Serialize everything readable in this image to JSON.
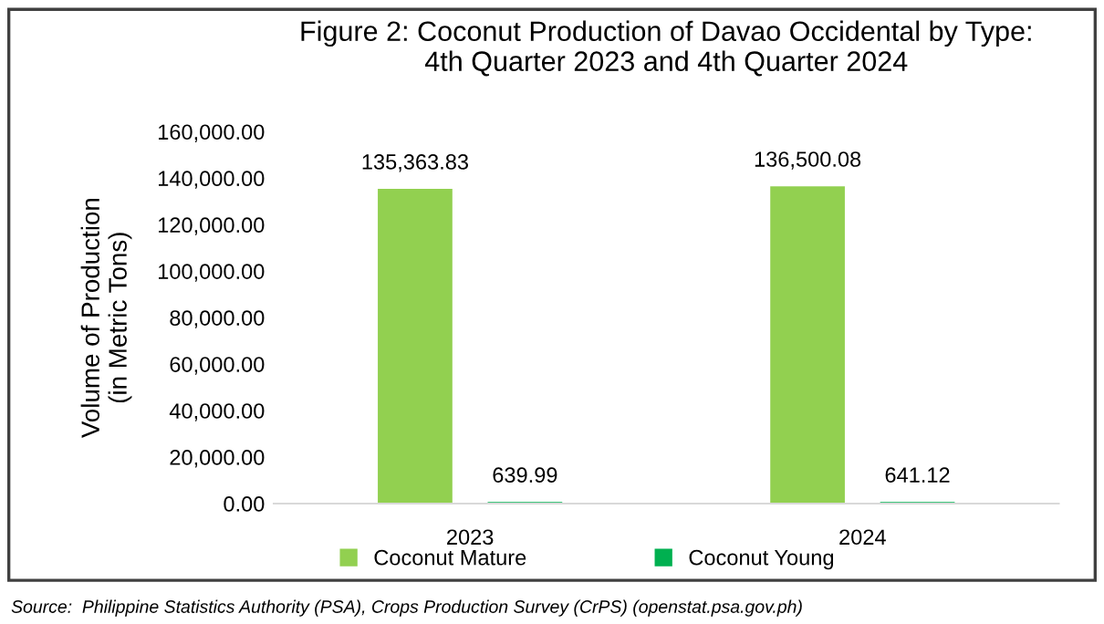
{
  "chart_data": {
    "type": "bar",
    "title": "Figure 2: Coconut Production of Davao Occidental by Type:\n4th Quarter 2023 and 4th Quarter 2024",
    "ylabel": "Volume of Production\n(in Metric Tons)",
    "categories": [
      "2023",
      "2024"
    ],
    "series": [
      {
        "name": "Coconut Mature",
        "color": "#92d050",
        "values": [
          135363.83,
          136500.08
        ],
        "value_labels": [
          "135,363.83",
          "136,500.08"
        ]
      },
      {
        "name": "Coconut Young",
        "color": "#00b050",
        "values": [
          639.99,
          641.12
        ],
        "value_labels": [
          "639.99",
          "641.12"
        ]
      }
    ],
    "ylim": [
      0,
      160000
    ],
    "yticks": [
      {
        "value": 0,
        "label": "0.00"
      },
      {
        "value": 20000,
        "label": "20,000.00"
      },
      {
        "value": 40000,
        "label": "40,000.00"
      },
      {
        "value": 60000,
        "label": "60,000.00"
      },
      {
        "value": 80000,
        "label": "80,000.00"
      },
      {
        "value": 100000,
        "label": "100,000.00"
      },
      {
        "value": 120000,
        "label": "120,000.00"
      },
      {
        "value": 140000,
        "label": "140,000.00"
      },
      {
        "value": 160000,
        "label": "160,000.00"
      }
    ],
    "grid": false,
    "legend": "bottom",
    "annotations": [
      "Source:  Philippine Statistics Authority (PSA), Crops Production Survey (CrPS) (openstat.psa.gov.ph)"
    ]
  }
}
